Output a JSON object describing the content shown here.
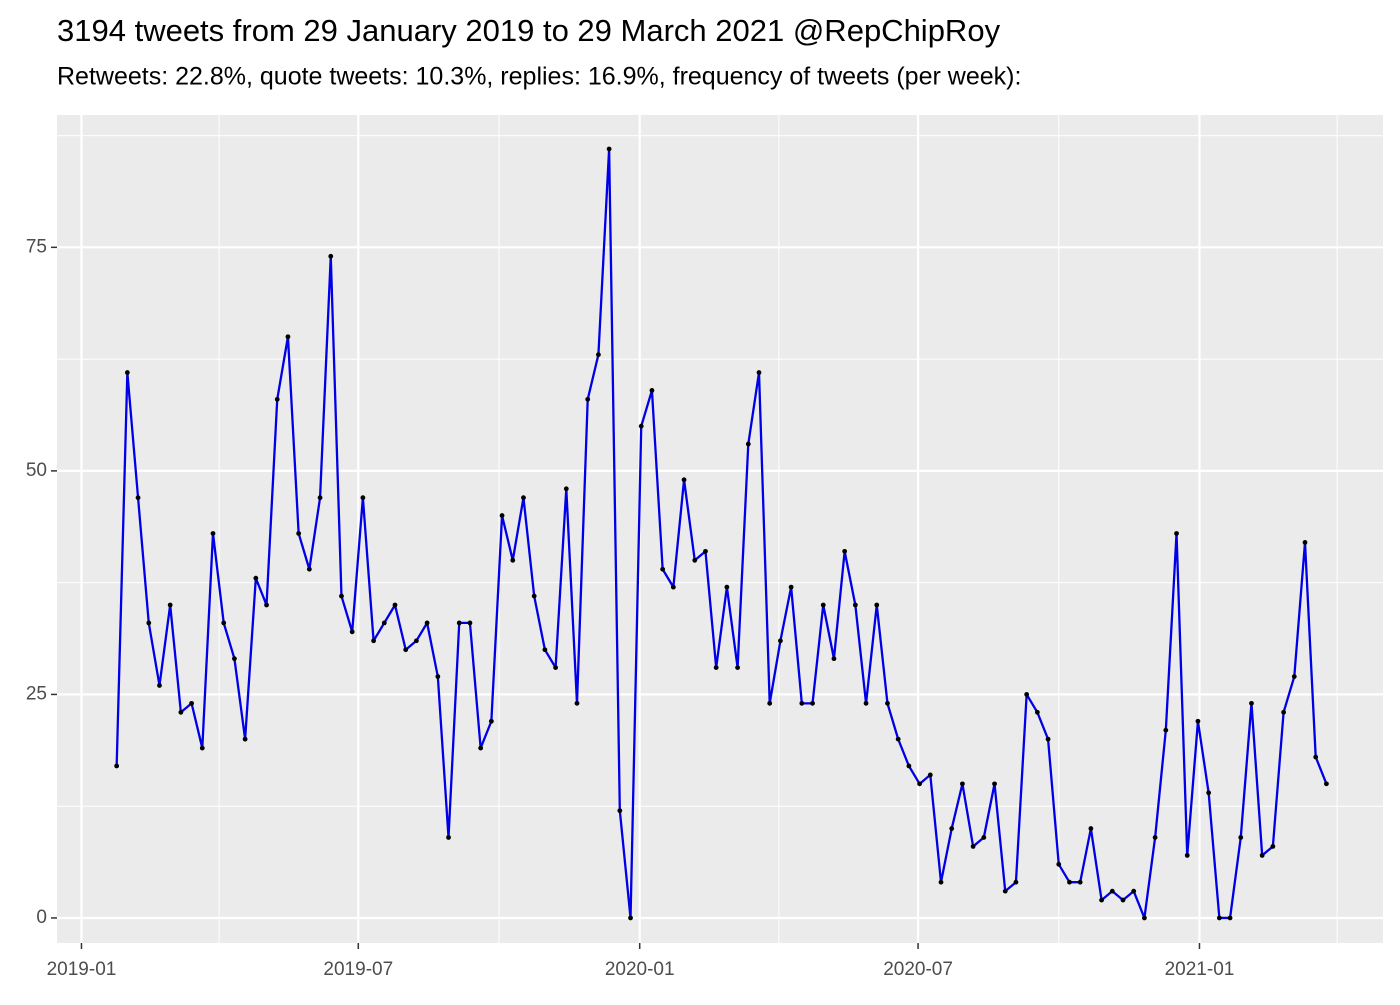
{
  "chart_data": {
    "type": "line",
    "title": "3194 tweets from 29 January 2019 to 29 March 2021 @RepChipRoy",
    "subtitle": "Retweets: 22.8%, quote tweets: 10.3%, replies: 16.9%, frequency of tweets (per week):",
    "x": [
      "2019-01-24",
      "2019-01-31",
      "2019-02-07",
      "2019-02-14",
      "2019-02-21",
      "2019-02-28",
      "2019-03-07",
      "2019-03-14",
      "2019-03-21",
      "2019-03-28",
      "2019-04-04",
      "2019-04-11",
      "2019-04-18",
      "2019-04-25",
      "2019-05-02",
      "2019-05-09",
      "2019-05-16",
      "2019-05-23",
      "2019-05-30",
      "2019-06-06",
      "2019-06-13",
      "2019-06-20",
      "2019-06-27",
      "2019-07-04",
      "2019-07-11",
      "2019-07-18",
      "2019-07-25",
      "2019-08-01",
      "2019-08-08",
      "2019-08-15",
      "2019-08-22",
      "2019-08-29",
      "2019-09-05",
      "2019-09-12",
      "2019-09-19",
      "2019-09-26",
      "2019-10-03",
      "2019-10-10",
      "2019-10-17",
      "2019-10-24",
      "2019-10-31",
      "2019-11-07",
      "2019-11-14",
      "2019-11-21",
      "2019-11-28",
      "2019-12-05",
      "2019-12-12",
      "2019-12-19",
      "2019-12-26",
      "2020-01-02",
      "2020-01-09",
      "2020-01-16",
      "2020-01-23",
      "2020-01-30",
      "2020-02-06",
      "2020-02-13",
      "2020-02-20",
      "2020-02-27",
      "2020-03-05",
      "2020-03-12",
      "2020-03-19",
      "2020-03-26",
      "2020-04-02",
      "2020-04-09",
      "2020-04-16",
      "2020-04-23",
      "2020-04-30",
      "2020-05-07",
      "2020-05-14",
      "2020-05-21",
      "2020-05-28",
      "2020-06-04",
      "2020-06-11",
      "2020-06-18",
      "2020-06-25",
      "2020-07-02",
      "2020-07-09",
      "2020-07-16",
      "2020-07-23",
      "2020-07-30",
      "2020-08-06",
      "2020-08-13",
      "2020-08-20",
      "2020-08-27",
      "2020-09-03",
      "2020-09-10",
      "2020-09-17",
      "2020-09-24",
      "2020-10-01",
      "2020-10-08",
      "2020-10-15",
      "2020-10-22",
      "2020-10-29",
      "2020-11-05",
      "2020-11-12",
      "2020-11-19",
      "2020-11-26",
      "2020-12-03",
      "2020-12-10",
      "2020-12-17",
      "2020-12-24",
      "2020-12-31",
      "2021-01-07",
      "2021-01-14",
      "2021-01-21",
      "2021-01-28",
      "2021-02-04",
      "2021-02-11",
      "2021-02-18",
      "2021-02-25",
      "2021-03-04",
      "2021-03-11",
      "2021-03-18",
      "2021-03-25"
    ],
    "values": [
      17,
      61,
      47,
      33,
      26,
      35,
      23,
      24,
      19,
      43,
      33,
      29,
      20,
      38,
      35,
      58,
      65,
      43,
      39,
      47,
      74,
      36,
      32,
      47,
      31,
      33,
      35,
      30,
      31,
      33,
      27,
      9,
      33,
      33,
      19,
      22,
      45,
      40,
      47,
      36,
      30,
      28,
      48,
      24,
      58,
      63,
      86,
      12,
      0,
      55,
      59,
      39,
      37,
      49,
      40,
      41,
      28,
      37,
      28,
      53,
      61,
      24,
      31,
      37,
      24,
      24,
      35,
      29,
      41,
      35,
      24,
      35,
      24,
      20,
      17,
      15,
      16,
      4,
      10,
      15,
      8,
      9,
      15,
      3,
      4,
      25,
      23,
      20,
      6,
      4,
      4,
      10,
      2,
      3,
      2,
      3,
      0,
      9,
      21,
      43,
      7,
      22,
      14,
      0,
      0,
      9,
      24,
      7,
      8,
      23,
      27,
      42,
      18,
      15
    ],
    "color": "#0000e6",
    "point_color": "#000000",
    "xlim": [
      "2018-12-16",
      "2021-05-01"
    ],
    "xticks": [
      {
        "value": "2019-01-01",
        "label": "2019-01"
      },
      {
        "value": "2019-07-01",
        "label": "2019-07"
      },
      {
        "value": "2020-01-01",
        "label": "2020-01"
      },
      {
        "value": "2020-07-01",
        "label": "2020-07"
      },
      {
        "value": "2021-01-01",
        "label": "2021-01"
      }
    ],
    "xticks_minor": [
      "2019-04-01",
      "2019-10-01",
      "2020-04-01",
      "2020-10-01",
      "2021-04-01"
    ],
    "ylim": [
      -2.8,
      89.8
    ],
    "yticks": [
      0,
      25,
      50,
      75
    ],
    "yticks_minor": [
      12.5,
      37.5,
      62.5,
      87.5
    ],
    "grid": true
  }
}
